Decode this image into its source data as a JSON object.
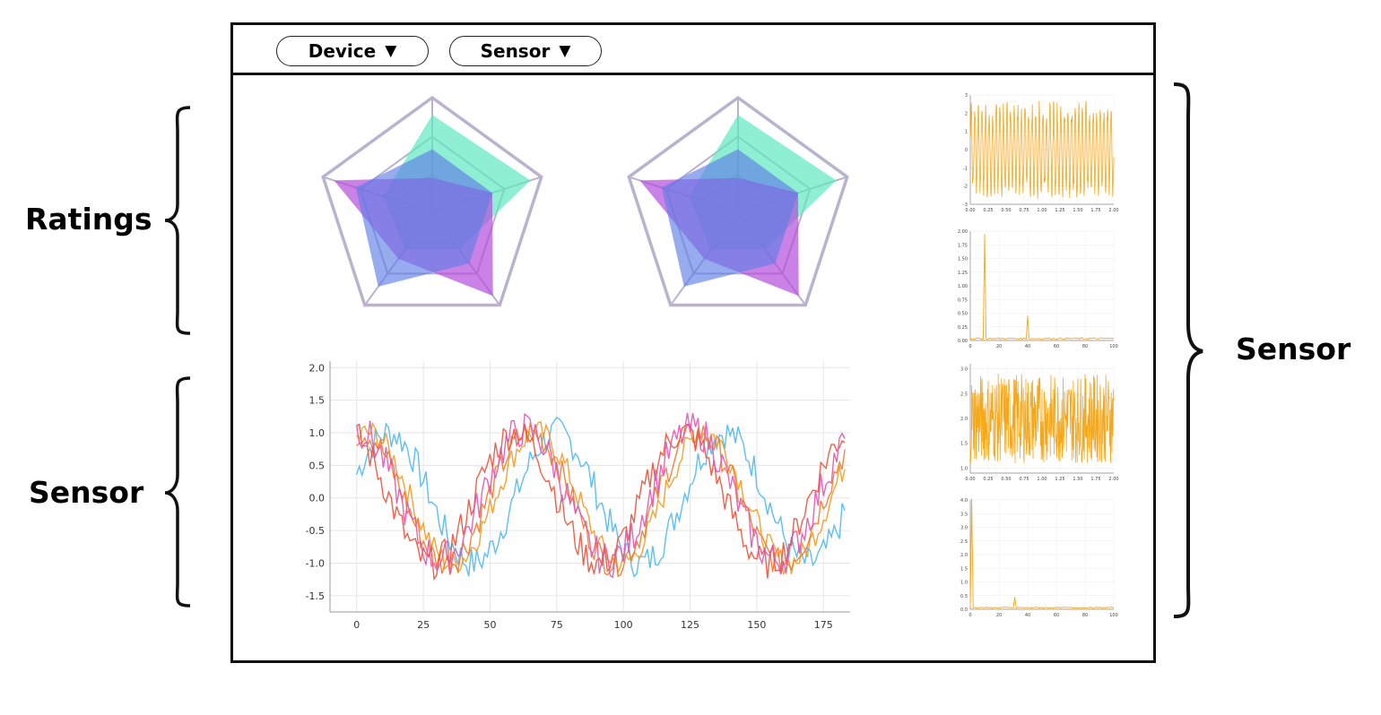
{
  "toolbar": {
    "device_label": "Device",
    "sensor_label": "Sensor",
    "caret_icon": "triangle-down-icon"
  },
  "annotations": {
    "ratings": "Ratings",
    "sensor_left": "Sensor",
    "sensor_right": "Sensor"
  },
  "colors": {
    "radar_teal": "#5ee8c0",
    "radar_purple": "#b44ddb",
    "radar_blue": "#5f7ee6",
    "grid": "#b9b3cd",
    "line_blue": "#4db8f0",
    "line_orange": "#f29a1f",
    "line_red": "#e8533a",
    "line_pink": "#e056b0",
    "line_darkorange": "#ef7a2a",
    "small_chart": "#f4a81c"
  },
  "chart_data": [
    {
      "type": "radar",
      "axes": 5,
      "series": [
        {
          "values": [
            0.85,
            0.9,
            0.4,
            0.4,
            0.45
          ]
        },
        {
          "values": [
            0.3,
            0.55,
            0.9,
            0.5,
            0.9
          ]
        },
        {
          "values": [
            0.55,
            0.55,
            0.55,
            0.8,
            0.7
          ]
        }
      ]
    },
    {
      "type": "radar",
      "axes": 5,
      "series": [
        {
          "values": [
            0.85,
            0.9,
            0.4,
            0.4,
            0.45
          ]
        },
        {
          "values": [
            0.3,
            0.55,
            0.9,
            0.5,
            0.9
          ]
        },
        {
          "values": [
            0.55,
            0.55,
            0.55,
            0.8,
            0.7
          ]
        }
      ]
    },
    {
      "type": "line",
      "x_ticks": [
        "0",
        "25",
        "50",
        "75",
        "100",
        "125",
        "150",
        "175"
      ],
      "y_ticks": [
        "2.0",
        "1.5",
        "1.0",
        "0.5",
        "0.0",
        "-0.5",
        "-1.0",
        "-1.5"
      ],
      "xlim": [
        -10,
        185
      ],
      "ylim": [
        -1.75,
        2.1
      ],
      "grid": true,
      "series": [
        {
          "phase": -1.2,
          "offset": 0.0,
          "noise": 0.25
        },
        {
          "phase": -0.45,
          "offset": 0.0,
          "noise": 0.2
        },
        {
          "phase": -0.2,
          "offset": 0.0,
          "noise": 0.22
        },
        {
          "phase": 0.35,
          "offset": 0.0,
          "noise": 0.25
        },
        {
          "phase": 0.0,
          "offset": 0.05,
          "noise": 0.28
        }
      ],
      "period": 63
    },
    {
      "type": "line",
      "x_ticks": [
        "0.00",
        "0.25",
        "0.50",
        "0.75",
        "1.00",
        "1.25",
        "1.50",
        "1.75",
        "2.00"
      ],
      "y_ticks": [
        "3",
        "2",
        "1",
        "0",
        "-1",
        "-2",
        "-3"
      ],
      "xlim": [
        0,
        2
      ],
      "ylim": [
        -3,
        3
      ]
    },
    {
      "type": "line",
      "x_ticks": [
        "0",
        "20",
        "40",
        "60",
        "80",
        "100"
      ],
      "y_ticks": [
        "2.00",
        "1.75",
        "1.50",
        "1.25",
        "1.00",
        "0.75",
        "0.50",
        "0.25",
        "0.00"
      ],
      "xlim": [
        0,
        100
      ],
      "ylim": [
        0,
        2
      ],
      "spikes": [
        {
          "x": 10,
          "y": 1.95
        },
        {
          "x": 40,
          "y": 0.45
        }
      ]
    },
    {
      "type": "line",
      "x_ticks": [
        "0.00",
        "0.25",
        "0.50",
        "0.75",
        "1.00",
        "1.25",
        "1.50",
        "1.75",
        "2.00"
      ],
      "y_ticks": [
        "3.0",
        "2.5",
        "2.0",
        "1.5",
        "1.0"
      ],
      "xlim": [
        0,
        2
      ],
      "ylim": [
        0.9,
        3.1
      ]
    },
    {
      "type": "line",
      "x_ticks": [
        "0",
        "20",
        "40",
        "60",
        "80",
        "100"
      ],
      "y_ticks": [
        "4.0",
        "3.5",
        "3.0",
        "2.5",
        "2.0",
        "1.5",
        "1.0",
        "0.5",
        "0.0"
      ],
      "xlim": [
        0,
        100
      ],
      "ylim": [
        0,
        4
      ],
      "spikes": [
        {
          "x": 1,
          "y": 4.05
        },
        {
          "x": 31,
          "y": 0.45
        }
      ]
    }
  ]
}
